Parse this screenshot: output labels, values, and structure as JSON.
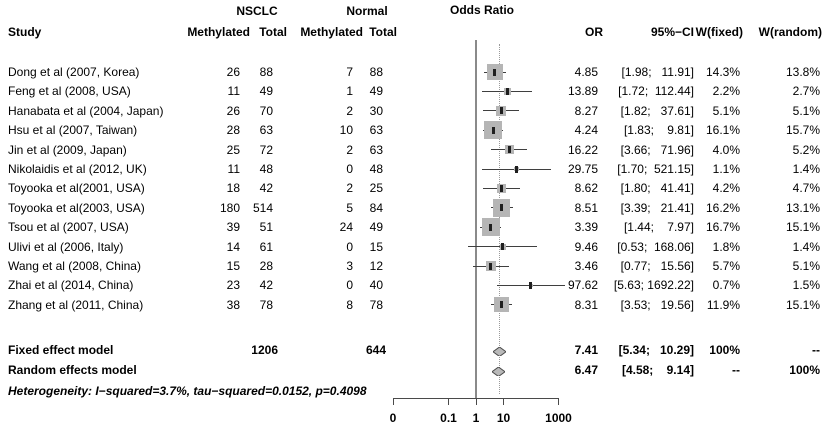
{
  "header": {
    "study": "Study",
    "nsclc_group": "NSCLC",
    "normal_group": "Normal",
    "methylated": "Methylated",
    "total": "Total",
    "plot_title": "Odds Ratio",
    "or": "OR",
    "ci": "95%−CI",
    "w_fixed": "W(fixed)",
    "w_random": "W(random)"
  },
  "colors": {
    "square": "#b5b5b5",
    "square_center": "#1f1f1f",
    "ci_line": "#3f3f3f",
    "diamond_fill": "#b9b9b9",
    "diamond_border": "#4a4a4a",
    "ref_line": "#8a8a8a",
    "dotted_line": "#9a9a9a"
  },
  "chart_data": {
    "type": "forest",
    "title": "Odds Ratio",
    "x_axis": {
      "scale": "log",
      "ticks": [
        0,
        0.1,
        1,
        10,
        1000
      ],
      "ref_line": 1
    },
    "studies": [
      {
        "name": "Dong et al (2007, Korea)",
        "nsclc_methylated": 26,
        "nsclc_total": 88,
        "normal_methylated": 7,
        "normal_total": 88,
        "or": 4.85,
        "ci": [
          1.98,
          11.91
        ],
        "w_fixed": "14.3%",
        "w_random": "13.8%"
      },
      {
        "name": "Feng et al (2008, USA)",
        "nsclc_methylated": 11,
        "nsclc_total": 49,
        "normal_methylated": 1,
        "normal_total": 49,
        "or": 13.89,
        "ci": [
          1.72,
          112.44
        ],
        "w_fixed": "2.2%",
        "w_random": "2.7%"
      },
      {
        "name": "Hanabata et al (2004, Japan)",
        "nsclc_methylated": 26,
        "nsclc_total": 70,
        "normal_methylated": 2,
        "normal_total": 30,
        "or": 8.27,
        "ci": [
          1.82,
          37.61
        ],
        "w_fixed": "5.1%",
        "w_random": "5.1%"
      },
      {
        "name": "Hsu et al (2007, Taiwan)",
        "nsclc_methylated": 28,
        "nsclc_total": 63,
        "normal_methylated": 10,
        "normal_total": 63,
        "or": 4.24,
        "ci": [
          1.83,
          9.81
        ],
        "w_fixed": "16.1%",
        "w_random": "15.7%"
      },
      {
        "name": "Jin et al (2009, Japan)",
        "nsclc_methylated": 25,
        "nsclc_total": 72,
        "normal_methylated": 2,
        "normal_total": 63,
        "or": 16.22,
        "ci": [
          3.66,
          71.96
        ],
        "w_fixed": "4.0%",
        "w_random": "5.2%"
      },
      {
        "name": "Nikolaidis et al (2012, UK)",
        "nsclc_methylated": 11,
        "nsclc_total": 48,
        "normal_methylated": 0,
        "normal_total": 48,
        "or": 29.75,
        "ci": [
          1.7,
          521.15
        ],
        "w_fixed": "1.1%",
        "w_random": "1.4%"
      },
      {
        "name": "Toyooka et al(2001, USA)",
        "nsclc_methylated": 18,
        "nsclc_total": 42,
        "normal_methylated": 2,
        "normal_total": 25,
        "or": 8.62,
        "ci": [
          1.8,
          41.41
        ],
        "w_fixed": "4.2%",
        "w_random": "4.7%"
      },
      {
        "name": "Toyooka et al(2003, USA)",
        "nsclc_methylated": 180,
        "nsclc_total": 514,
        "normal_methylated": 5,
        "normal_total": 84,
        "or": 8.51,
        "ci": [
          3.39,
          21.41
        ],
        "w_fixed": "16.2%",
        "w_random": "13.1%"
      },
      {
        "name": "Tsou et al (2007, USA)",
        "nsclc_methylated": 39,
        "nsclc_total": 51,
        "normal_methylated": 24,
        "normal_total": 49,
        "or": 3.39,
        "ci": [
          1.44,
          7.97
        ],
        "w_fixed": "16.7%",
        "w_random": "15.1%"
      },
      {
        "name": "Ulivi et al (2006, Italy)",
        "nsclc_methylated": 14,
        "nsclc_total": 61,
        "normal_methylated": 0,
        "normal_total": 15,
        "or": 9.46,
        "ci": [
          0.53,
          168.06
        ],
        "w_fixed": "1.8%",
        "w_random": "1.4%"
      },
      {
        "name": "Wang et al (2008, China)",
        "nsclc_methylated": 15,
        "nsclc_total": 28,
        "normal_methylated": 3,
        "normal_total": 12,
        "or": 3.46,
        "ci": [
          0.77,
          15.56
        ],
        "w_fixed": "5.7%",
        "w_random": "5.1%"
      },
      {
        "name": "Zhai et al (2014, China)",
        "nsclc_methylated": 23,
        "nsclc_total": 42,
        "normal_methylated": 0,
        "normal_total": 40,
        "or": 97.62,
        "ci": [
          5.63,
          1692.22
        ],
        "w_fixed": "0.7%",
        "w_random": "1.5%"
      },
      {
        "name": "Zhang et al (2011, China)",
        "nsclc_methylated": 38,
        "nsclc_total": 78,
        "normal_methylated": 8,
        "normal_total": 78,
        "or": 8.31,
        "ci": [
          3.53,
          19.56
        ],
        "w_fixed": "11.9%",
        "w_random": "15.1%"
      }
    ],
    "models": [
      {
        "name": "Fixed effect model",
        "nsclc_total": 1206,
        "normal_total": 644,
        "or": 7.41,
        "ci": [
          5.34,
          10.29
        ],
        "w_fixed": "100%",
        "w_random": "--"
      },
      {
        "name": "Random effects model",
        "nsclc_total": "",
        "normal_total": "",
        "or": 6.47,
        "ci": [
          4.58,
          9.14
        ],
        "w_fixed": "--",
        "w_random": "100%"
      }
    ],
    "heterogeneity": "Heterogeneity: I−squared=3.7%, tau−squared=0.0152, p=0.4098"
  }
}
